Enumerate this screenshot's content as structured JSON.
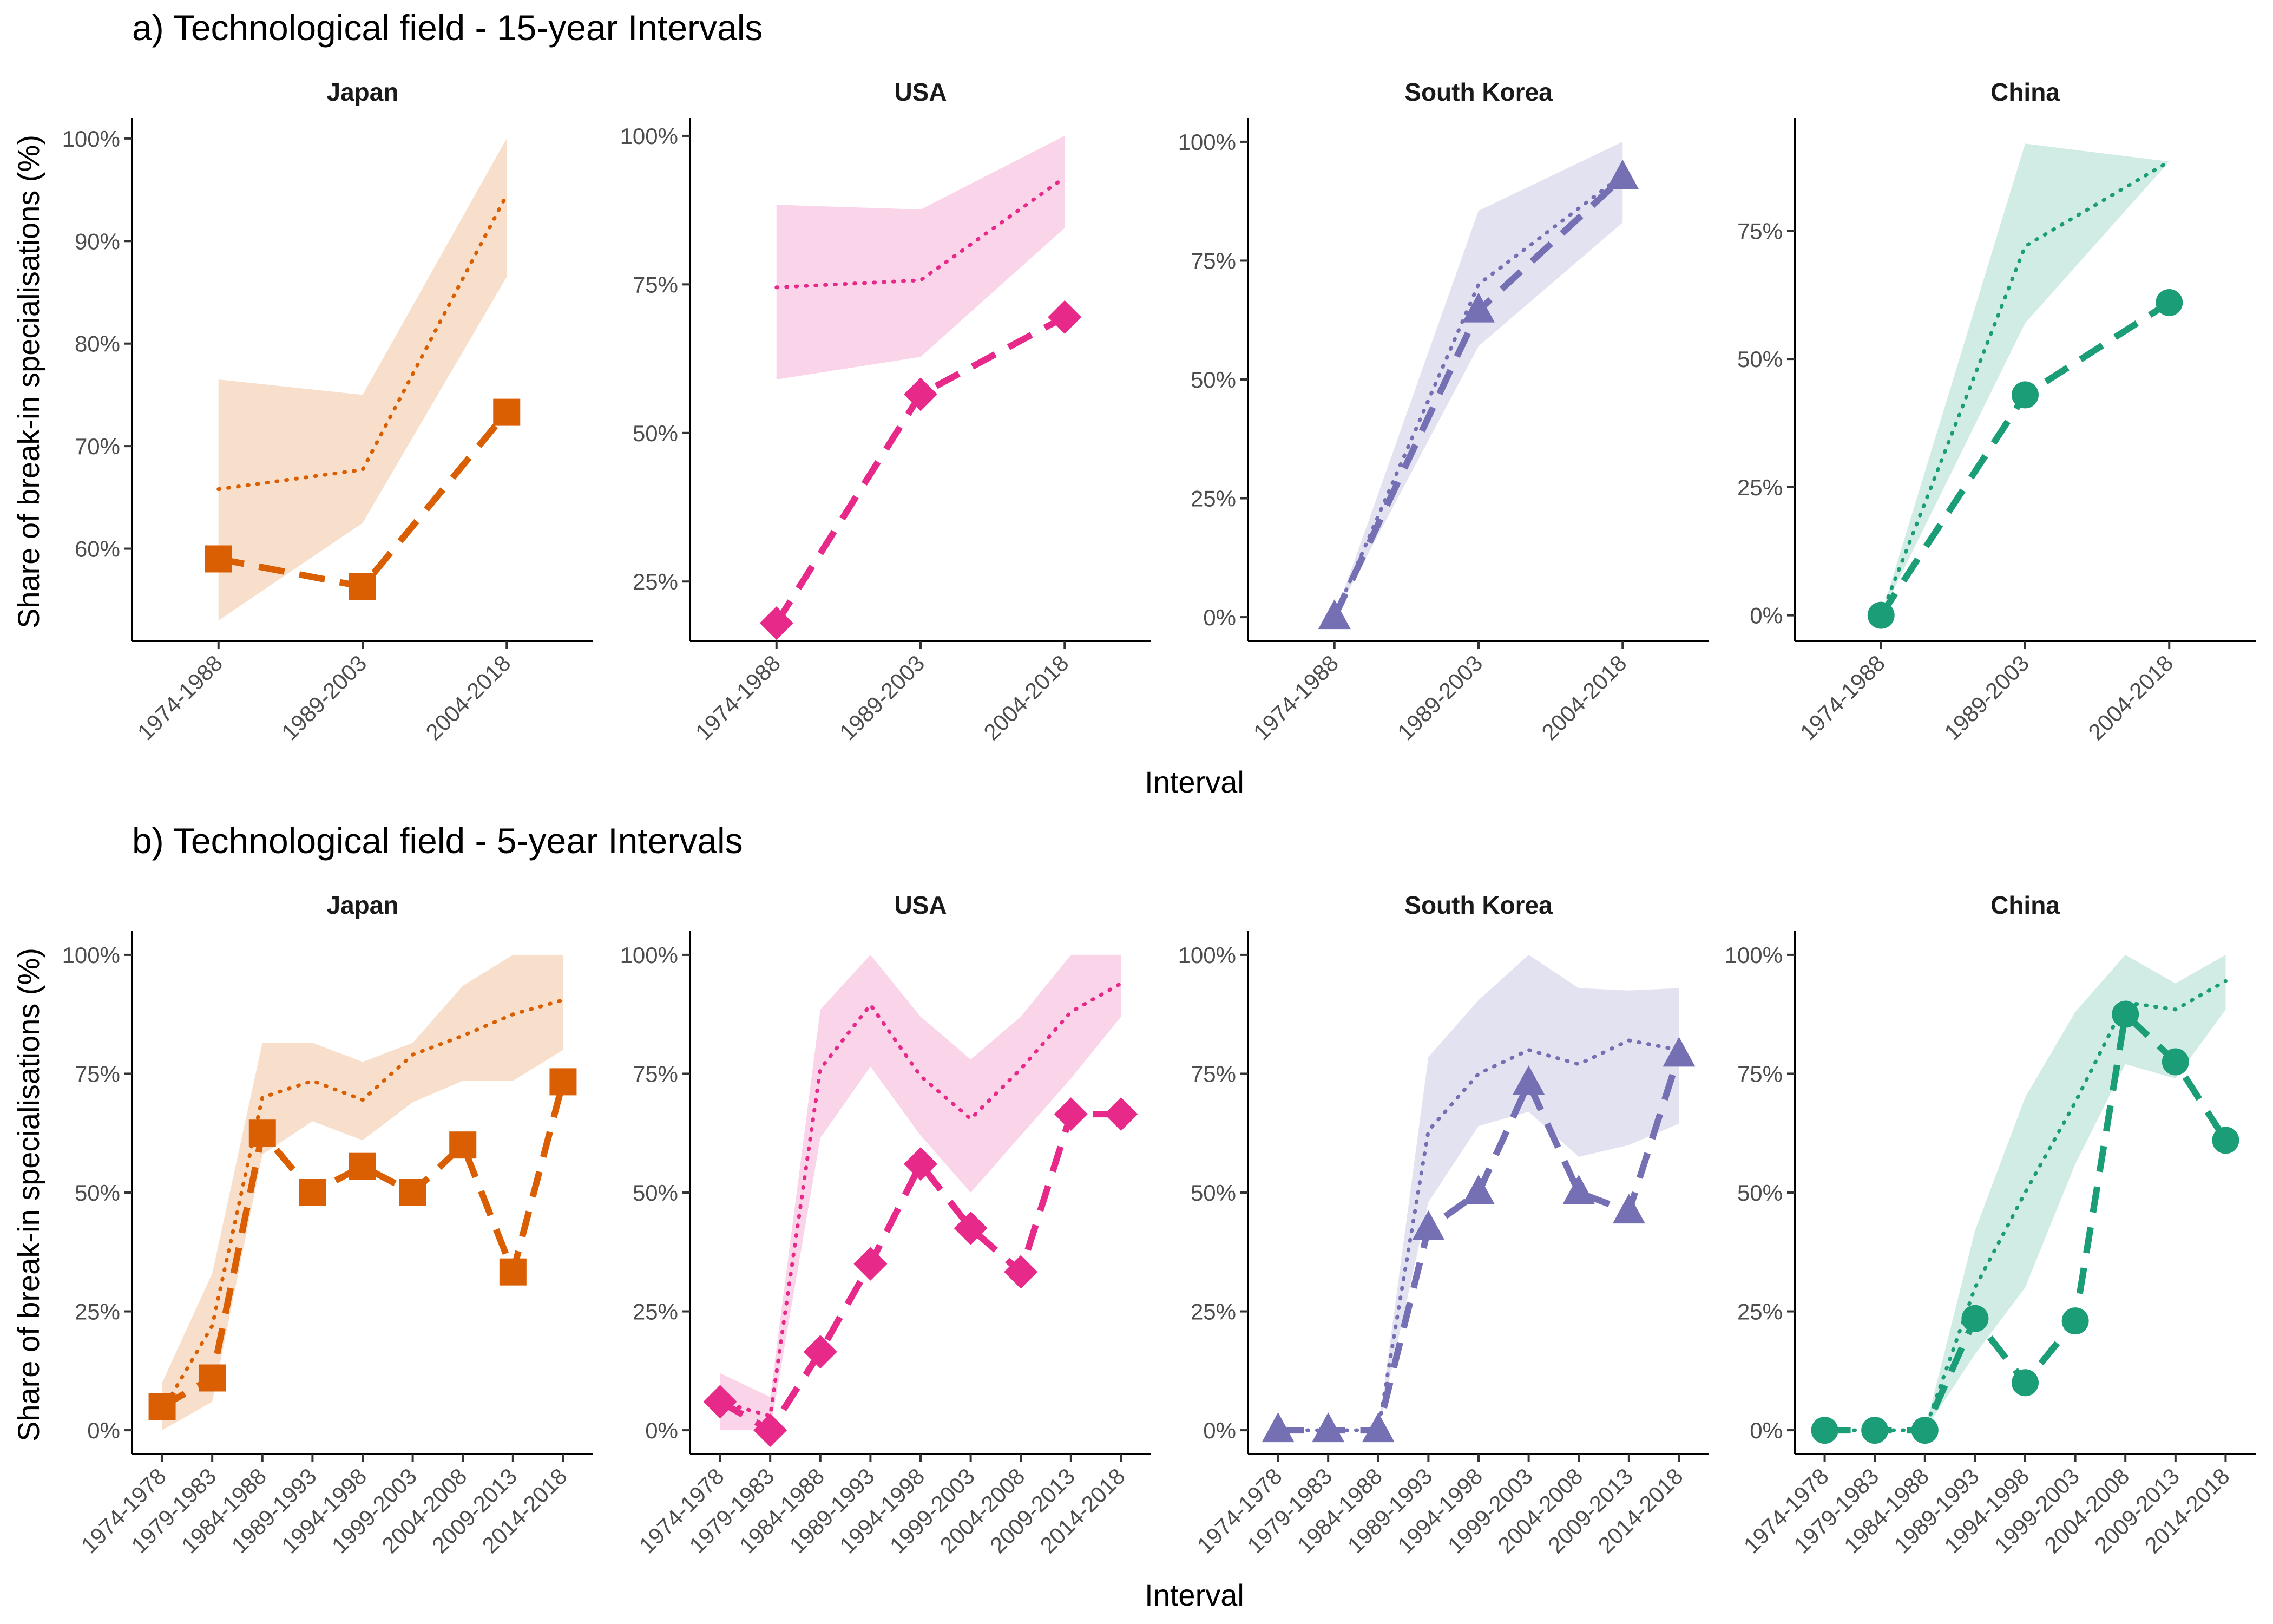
{
  "figure": {
    "ylabel": "Share of break-in specialisations (%)"
  },
  "colors": {
    "Japan": "#d95f02",
    "USA": "#e7298a",
    "South Korea": "#7570b3",
    "China": "#1b9e77"
  },
  "markers": {
    "Japan": "square",
    "USA": "diamond",
    "South Korea": "triangle",
    "China": "circle"
  },
  "chart_data": [
    {
      "section_title": "a) Technological field - 15-year Intervals",
      "xlabel": "Interval",
      "categories": [
        "1974-1988",
        "1989-2003",
        "2004-2018"
      ],
      "panels": [
        {
          "type": "line",
          "title": "Japan",
          "ylim": [
            0.51,
            1.02
          ],
          "ticks": [
            0.6,
            0.7,
            0.8,
            0.9,
            1.0
          ],
          "tick_labels": [
            "60%",
            "70%",
            "80%",
            "90%",
            "100%"
          ],
          "observed": [
            0.59,
            0.563,
            0.733
          ],
          "expected": [
            0.658,
            0.677,
            0.945
          ],
          "band_low": [
            0.53,
            0.625,
            0.865
          ],
          "band_high": [
            0.765,
            0.75,
            1.0
          ]
        },
        {
          "type": "line",
          "title": "USA",
          "ylim": [
            0.15,
            1.03
          ],
          "ticks": [
            0.25,
            0.5,
            0.75,
            1.0
          ],
          "tick_labels": [
            "25%",
            "50%",
            "75%",
            "100%"
          ],
          "observed": [
            0.18,
            0.565,
            0.695
          ],
          "expected": [
            0.745,
            0.757,
            0.93
          ],
          "band_low": [
            0.59,
            0.628,
            0.845
          ],
          "band_high": [
            0.884,
            0.876,
            1.0
          ]
        },
        {
          "type": "line",
          "title": "South Korea",
          "ylim": [
            -0.05,
            1.05
          ],
          "ticks": [
            0,
            0.25,
            0.5,
            0.75,
            1.0
          ],
          "tick_labels": [
            "0%",
            "25%",
            "50%",
            "75%",
            "100%"
          ],
          "observed": [
            0.0,
            0.645,
            0.925
          ],
          "expected": [
            0.0,
            0.7,
            0.93
          ],
          "band_low": [
            0.0,
            0.57,
            0.83
          ],
          "band_high": [
            0.0,
            0.855,
            1.0
          ]
        },
        {
          "type": "line",
          "title": "China",
          "ylim": [
            -0.05,
            0.97
          ],
          "ticks": [
            0,
            0.25,
            0.5,
            0.75
          ],
          "tick_labels": [
            "0%",
            "25%",
            "50%",
            "75%"
          ],
          "observed": [
            0.0,
            0.43,
            0.61
          ],
          "expected": [
            0.0,
            0.72,
            0.885
          ],
          "band_low": [
            0.0,
            0.57,
            0.885
          ],
          "band_high": [
            0.0,
            0.92,
            0.885
          ]
        }
      ]
    },
    {
      "section_title": "b) Technological field - 5-year Intervals",
      "xlabel": "Interval",
      "categories": [
        "1974-1978",
        "1979-1983",
        "1984-1988",
        "1989-1993",
        "1994-1998",
        "1999-2003",
        "2004-2008",
        "2009-2013",
        "2014-2018"
      ],
      "panels": [
        {
          "type": "line",
          "title": "Japan",
          "ylim": [
            -0.05,
            1.05
          ],
          "ticks": [
            0,
            0.25,
            0.5,
            0.75,
            1.0
          ],
          "tick_labels": [
            "0%",
            "25%",
            "50%",
            "75%",
            "100%"
          ],
          "observed": [
            0.05,
            0.11,
            0.625,
            0.5,
            0.555,
            0.5,
            0.6,
            0.333,
            0.733
          ],
          "expected": [
            0.04,
            0.22,
            0.7,
            0.735,
            0.695,
            0.79,
            0.83,
            0.875,
            0.905
          ],
          "band_low": [
            0.0,
            0.06,
            0.58,
            0.65,
            0.61,
            0.69,
            0.735,
            0.735,
            0.8
          ],
          "band_high": [
            0.1,
            0.33,
            0.815,
            0.815,
            0.775,
            0.815,
            0.935,
            1.0,
            1.0
          ]
        },
        {
          "type": "line",
          "title": "USA",
          "ylim": [
            -0.05,
            1.05
          ],
          "ticks": [
            0,
            0.25,
            0.5,
            0.75,
            1.0
          ],
          "tick_labels": [
            "0%",
            "25%",
            "50%",
            "75%",
            "100%"
          ],
          "observed": [
            0.06,
            0.0,
            0.165,
            0.35,
            0.56,
            0.425,
            0.333,
            0.665,
            0.665
          ],
          "expected": [
            0.06,
            0.03,
            0.76,
            0.895,
            0.745,
            0.655,
            0.76,
            0.88,
            0.94
          ],
          "band_low": [
            0.0,
            0.0,
            0.615,
            0.765,
            0.62,
            0.5,
            0.62,
            0.74,
            0.87
          ],
          "band_high": [
            0.12,
            0.07,
            0.885,
            1.0,
            0.87,
            0.78,
            0.87,
            1.0,
            1.0
          ]
        },
        {
          "type": "line",
          "title": "South Korea",
          "ylim": [
            -0.05,
            1.05
          ],
          "ticks": [
            0,
            0.25,
            0.5,
            0.75,
            1.0
          ],
          "tick_labels": [
            "0%",
            "25%",
            "50%",
            "75%",
            "100%"
          ],
          "observed": [
            0.0,
            0.0,
            0.0,
            0.425,
            0.5,
            0.73,
            0.5,
            0.46,
            0.79
          ],
          "expected": [
            0.0,
            0.0,
            0.0,
            0.63,
            0.75,
            0.8,
            0.77,
            0.82,
            0.8
          ],
          "band_low": [
            0.0,
            0.0,
            0.0,
            0.48,
            0.64,
            0.67,
            0.575,
            0.6,
            0.645
          ],
          "band_high": [
            0.0,
            0.0,
            0.0,
            0.785,
            0.905,
            1.0,
            0.93,
            0.925,
            0.93
          ]
        },
        {
          "type": "line",
          "title": "China",
          "ylim": [
            -0.05,
            1.05
          ],
          "ticks": [
            0,
            0.25,
            0.5,
            0.75,
            1.0
          ],
          "tick_labels": [
            "0%",
            "25%",
            "50%",
            "75%",
            "100%"
          ],
          "observed": [
            0.0,
            0.0,
            0.0,
            0.235,
            0.1,
            0.23,
            0.875,
            0.775,
            0.61
          ],
          "expected": [
            0.0,
            0.0,
            0.0,
            0.3,
            0.5,
            0.69,
            0.9,
            0.885,
            0.945
          ],
          "band_low": [
            0.0,
            0.0,
            0.0,
            0.16,
            0.3,
            0.56,
            0.77,
            0.74,
            0.885
          ],
          "band_high": [
            0.0,
            0.0,
            0.0,
            0.42,
            0.7,
            0.88,
            1.0,
            0.94,
            1.0
          ]
        }
      ]
    }
  ]
}
